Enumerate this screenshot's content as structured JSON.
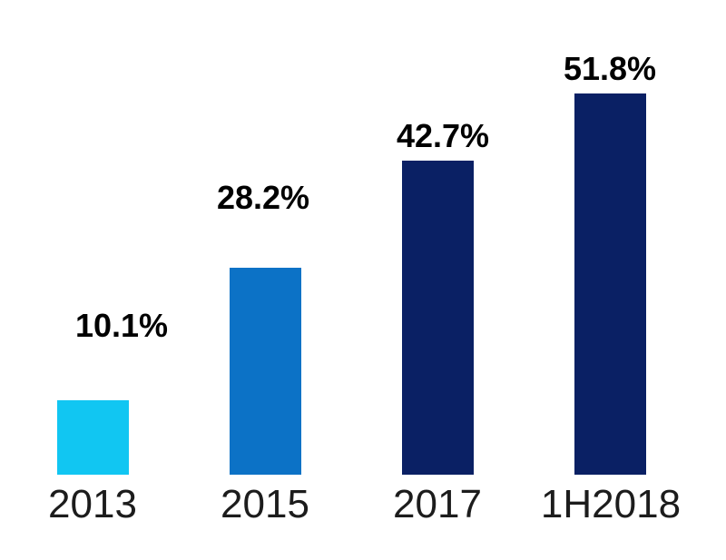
{
  "chart_data": {
    "type": "bar",
    "title": "",
    "xlabel": "",
    "ylabel": "",
    "categories": [
      "2013",
      "2015",
      "2017",
      "1H2018"
    ],
    "values": [
      10.1,
      28.2,
      42.7,
      51.8
    ],
    "value_labels": [
      "10.1%",
      "28.2%",
      "42.7%",
      "51.8%"
    ],
    "ylim": [
      0,
      53
    ],
    "grid": false,
    "legend": null,
    "axes_visible": false,
    "bar_colors": [
      "#11C6F2",
      "#0C72C6",
      "#0A2064",
      "#0A2064"
    ],
    "value_label_color": "#000000",
    "tick_label_color": "#1c1c1c",
    "background_color": "#ffffff"
  }
}
